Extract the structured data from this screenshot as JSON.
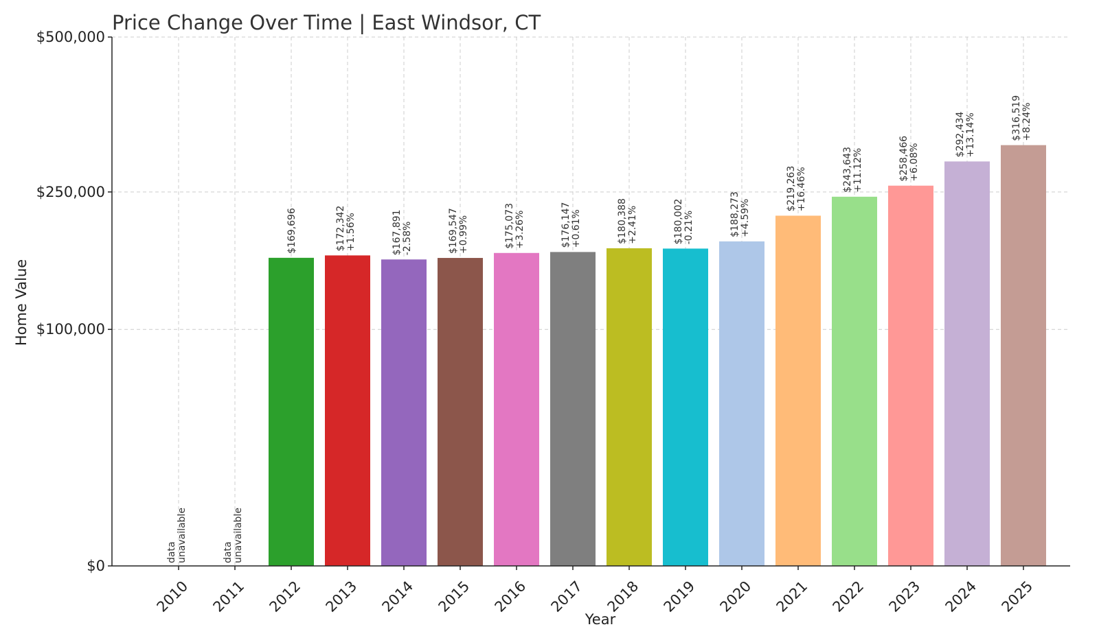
{
  "chart_data": {
    "type": "bar",
    "title": "Price Change Over Time | East Windsor, CT",
    "xlabel": "Year",
    "ylabel": "Home Value",
    "ylim": [
      0,
      500000
    ],
    "yscale": "sqrt",
    "yticks": [
      0,
      100000,
      250000,
      500000
    ],
    "ytick_labels": [
      "$0",
      "$100,000",
      "$250,000",
      "$500,000"
    ],
    "grid": true,
    "categories": [
      "2010",
      "2011",
      "2012",
      "2013",
      "2014",
      "2015",
      "2016",
      "2017",
      "2018",
      "2019",
      "2020",
      "2021",
      "2022",
      "2023",
      "2024",
      "2025"
    ],
    "values": [
      null,
      null,
      169696,
      172342,
      167891,
      169547,
      175073,
      176147,
      180388,
      180002,
      188273,
      219263,
      243643,
      258466,
      292434,
      316519
    ],
    "value_labels": [
      null,
      null,
      "$169,696",
      "$172,342",
      "$167,891",
      "$169,547",
      "$175,073",
      "$176,147",
      "$180,388",
      "$180,002",
      "$188,273",
      "$219,263",
      "$243,643",
      "$258,466",
      "$292,434",
      "$316,519"
    ],
    "change_labels": [
      null,
      null,
      null,
      "+1.56%",
      "-2.58%",
      "+0.99%",
      "+3.26%",
      "+0.61%",
      "+2.41%",
      "-0.21%",
      "+4.59%",
      "+16.46%",
      "+11.12%",
      "+6.08%",
      "+13.14%",
      "+8.24%"
    ],
    "unavailable_label_top": "data",
    "unavailable_label_bottom": "unavailable",
    "colors": [
      "#1f77b4",
      "#ff7f0e",
      "#2ca02c",
      "#d62728",
      "#9467bd",
      "#8c564b",
      "#e377c2",
      "#7f7f7f",
      "#bcbd22",
      "#17becf",
      "#aec7e8",
      "#ffbb78",
      "#98df8a",
      "#ff9896",
      "#c5b0d5",
      "#c49c94"
    ]
  }
}
